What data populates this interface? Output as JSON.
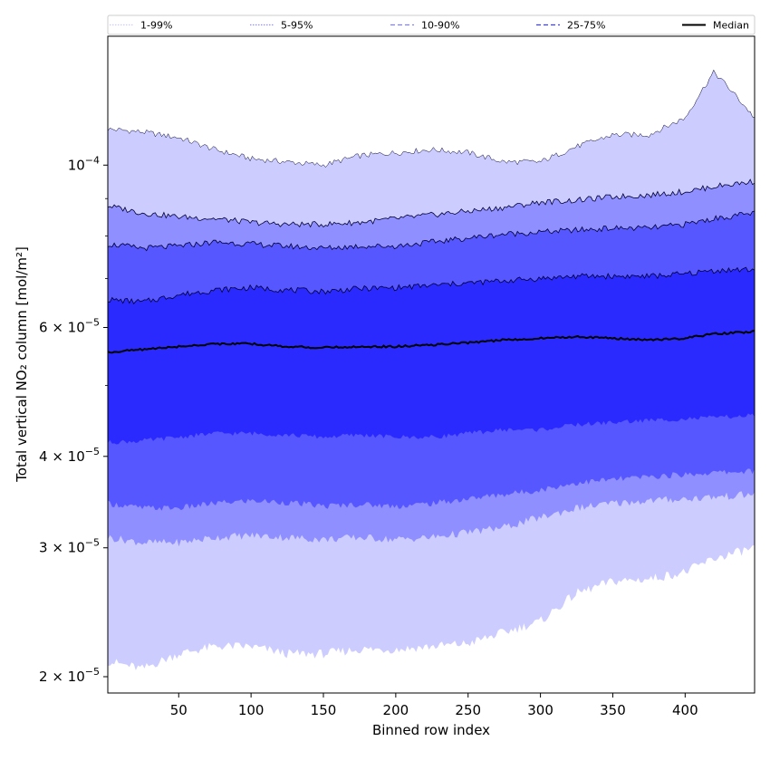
{
  "chart_data": {
    "type": "area",
    "xlabel": "Binned row index",
    "ylabel": "Total vertical NO₂ column [mol/m²]",
    "xlim": [
      1,
      448
    ],
    "ylim": [
      1.9e-05,
      0.00015
    ],
    "yscale": "log",
    "x_ticks": [
      50,
      100,
      150,
      200,
      250,
      300,
      350,
      400
    ],
    "x_tick_labels": [
      "50",
      "100",
      "150",
      "200",
      "250",
      "300",
      "350",
      "400"
    ],
    "y_ticks": [
      {
        "value": 2e-05,
        "mant": "2",
        "exp": "−5"
      },
      {
        "value": 3e-05,
        "mant": "3",
        "exp": "−5"
      },
      {
        "value": 4e-05,
        "mant": "4",
        "exp": "−5"
      },
      {
        "value": 6e-05,
        "mant": "6",
        "exp": "−5"
      },
      {
        "value": 0.0001,
        "mant": "10",
        "exp": "−4"
      }
    ],
    "legend_placement": "top, spanning full width",
    "x": [
      1,
      25,
      50,
      75,
      100,
      125,
      150,
      175,
      200,
      225,
      250,
      275,
      300,
      325,
      350,
      375,
      400,
      420,
      448
    ],
    "bands": [
      {
        "name": "1-99%",
        "color": "#ccccff",
        "upper": [
          0.000112,
          0.000111,
          0.000109,
          0.000105,
          0.000102,
          0.000101,
          0.0001,
          0.000103,
          0.000104,
          0.000105,
          0.000104,
          0.000101,
          0.000101,
          0.000106,
          0.00011,
          0.00011,
          0.000116,
          0.000134,
          0.000116
        ],
        "lower": [
          2.1e-05,
          2.05e-05,
          2.15e-05,
          2.2e-05,
          2.2e-05,
          2.15e-05,
          2.15e-05,
          2.18e-05,
          2.18e-05,
          2.2e-05,
          2.22e-05,
          2.3e-05,
          2.38e-05,
          2.6e-05,
          2.7e-05,
          2.72e-05,
          2.78e-05,
          2.9e-05,
          3e-05
        ]
      },
      {
        "name": "5-95%",
        "color": "#8f8fff",
        "upper": [
          8.8e-05,
          8.6e-05,
          8.5e-05,
          8.45e-05,
          8.35e-05,
          8.3e-05,
          8.3e-05,
          8.35e-05,
          8.45e-05,
          8.55e-05,
          8.65e-05,
          8.75e-05,
          8.9e-05,
          8.95e-05,
          9.05e-05,
          9.1e-05,
          9.2e-05,
          9.35e-05,
          9.5e-05
        ],
        "lower": [
          3.1e-05,
          3.05e-05,
          3.05e-05,
          3.1e-05,
          3.12e-05,
          3.1e-05,
          3.08e-05,
          3.1e-05,
          3.08e-05,
          3.1e-05,
          3.15e-05,
          3.2e-05,
          3.3e-05,
          3.4e-05,
          3.45e-05,
          3.48e-05,
          3.5e-05,
          3.52e-05,
          3.55e-05
        ]
      },
      {
        "name": "10-90%",
        "color": "#5757ff",
        "upper": [
          7.8e-05,
          7.7e-05,
          7.75e-05,
          7.85e-05,
          7.8e-05,
          7.75e-05,
          7.7e-05,
          7.75e-05,
          7.75e-05,
          7.85e-05,
          7.95e-05,
          8.05e-05,
          8.1e-05,
          8.15e-05,
          8.2e-05,
          8.2e-05,
          8.3e-05,
          8.45e-05,
          8.6e-05
        ],
        "lower": [
          3.45e-05,
          3.4e-05,
          3.4e-05,
          3.45e-05,
          3.48e-05,
          3.46e-05,
          3.42e-05,
          3.44e-05,
          3.42e-05,
          3.45e-05,
          3.5e-05,
          3.55e-05,
          3.6e-05,
          3.68e-05,
          3.72e-05,
          3.75e-05,
          3.78e-05,
          3.8e-05,
          3.82e-05
        ]
      },
      {
        "name": "25-75%",
        "color": "#2a2aff",
        "upper": [
          6.55e-05,
          6.5e-05,
          6.65e-05,
          6.75e-05,
          6.8e-05,
          6.75e-05,
          6.72e-05,
          6.78e-05,
          6.8e-05,
          6.85e-05,
          6.9e-05,
          6.95e-05,
          7e-05,
          7.05e-05,
          7.05e-05,
          7.05e-05,
          7.1e-05,
          7.18e-05,
          7.2e-05
        ],
        "lower": [
          4.18e-05,
          4.2e-05,
          4.25e-05,
          4.3e-05,
          4.3e-05,
          4.28e-05,
          4.25e-05,
          4.28e-05,
          4.25e-05,
          4.25e-05,
          4.3e-05,
          4.35e-05,
          4.35e-05,
          4.42e-05,
          4.45e-05,
          4.48e-05,
          4.5e-05,
          4.52e-05,
          4.55e-05
        ]
      }
    ],
    "median": {
      "name": "Median",
      "color": "#000000",
      "values": [
        5.55e-05,
        5.6e-05,
        5.65e-05,
        5.7e-05,
        5.7e-05,
        5.65e-05,
        5.63e-05,
        5.65e-05,
        5.65e-05,
        5.68e-05,
        5.72e-05,
        5.77e-05,
        5.8e-05,
        5.83e-05,
        5.8e-05,
        5.77e-05,
        5.8e-05,
        5.88e-05,
        5.92e-05
      ]
    },
    "legend": [
      {
        "label": "1-99%",
        "color": "#ccccff",
        "style": "dotted"
      },
      {
        "label": "5-95%",
        "color": "#8f8fff",
        "style": "dotted"
      },
      {
        "label": "10-90%",
        "color": "#8080ff",
        "style": "dashed"
      },
      {
        "label": "25-75%",
        "color": "#3d3dff",
        "style": "dashed"
      },
      {
        "label": "Median",
        "color": "#000000",
        "style": "solid"
      }
    ]
  }
}
